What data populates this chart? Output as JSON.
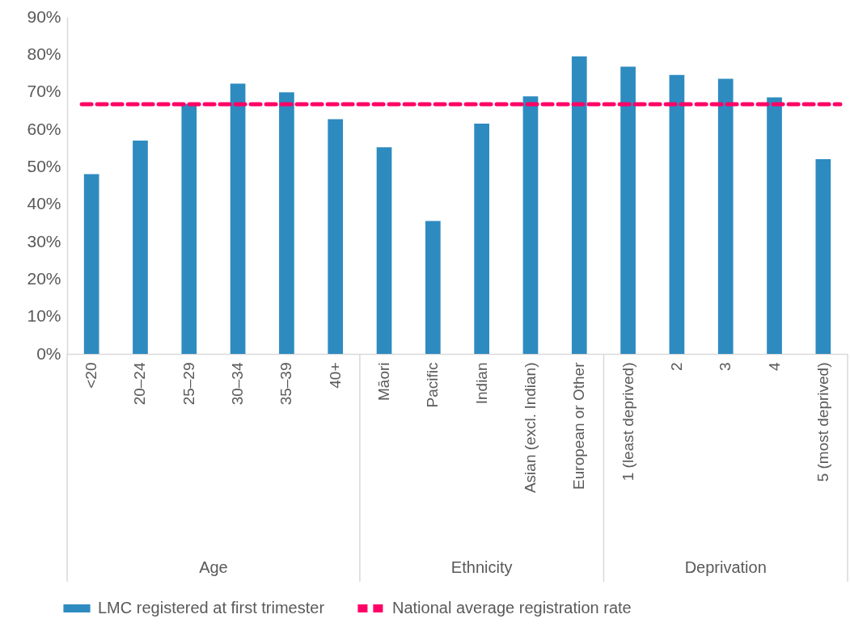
{
  "chart_data": {
    "type": "bar",
    "categories": [
      "<20",
      "20–24",
      "25–29",
      "30–34",
      "35–39",
      "40+",
      "Māori",
      "Pacific",
      "Indian",
      "Asian (excl. Indian)",
      "European or Other",
      "1 (least deprived)",
      "2",
      "3",
      "4",
      "5 (most deprived)"
    ],
    "series": [
      {
        "name": "LMC registered at first trimester",
        "color": "#2e8bc0",
        "values": [
          48,
          57,
          66.8,
          72.2,
          69.9,
          62.7,
          55.2,
          35.5,
          61.5,
          68.8,
          79.5,
          76.7,
          74.5,
          73.5,
          68.5,
          52
        ]
      }
    ],
    "ylim": [
      0,
      90
    ],
    "yticks": [
      {
        "value": 0,
        "label": "0%"
      },
      {
        "value": 10,
        "label": "10%"
      },
      {
        "value": 20,
        "label": "20%"
      },
      {
        "value": 30,
        "label": "30%"
      },
      {
        "value": 40,
        "label": "40%"
      },
      {
        "value": 50,
        "label": "50%"
      },
      {
        "value": 60,
        "label": "60%"
      },
      {
        "value": 70,
        "label": "70%"
      },
      {
        "value": 80,
        "label": "80%"
      },
      {
        "value": 90,
        "label": "90%"
      }
    ],
    "ref_lines": [
      {
        "axis": "y",
        "value": 66.7,
        "label": "National average registration rate",
        "color": "#ff0066",
        "line_style": "dashed"
      }
    ],
    "annotations": [
      "Age",
      "Ethnicity",
      "Deprivation"
    ],
    "grid": false,
    "legend": "bottom"
  }
}
